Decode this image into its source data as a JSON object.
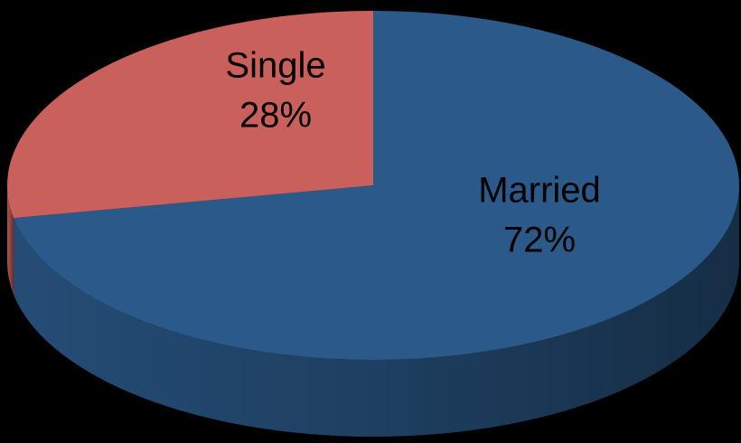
{
  "chart_data": {
    "type": "pie",
    "categories": [
      "Married",
      "Single"
    ],
    "values": [
      72,
      28
    ],
    "value_labels": [
      "72%",
      "28%"
    ],
    "colors": [
      "#2b5a8a",
      "#c9605b"
    ]
  }
}
